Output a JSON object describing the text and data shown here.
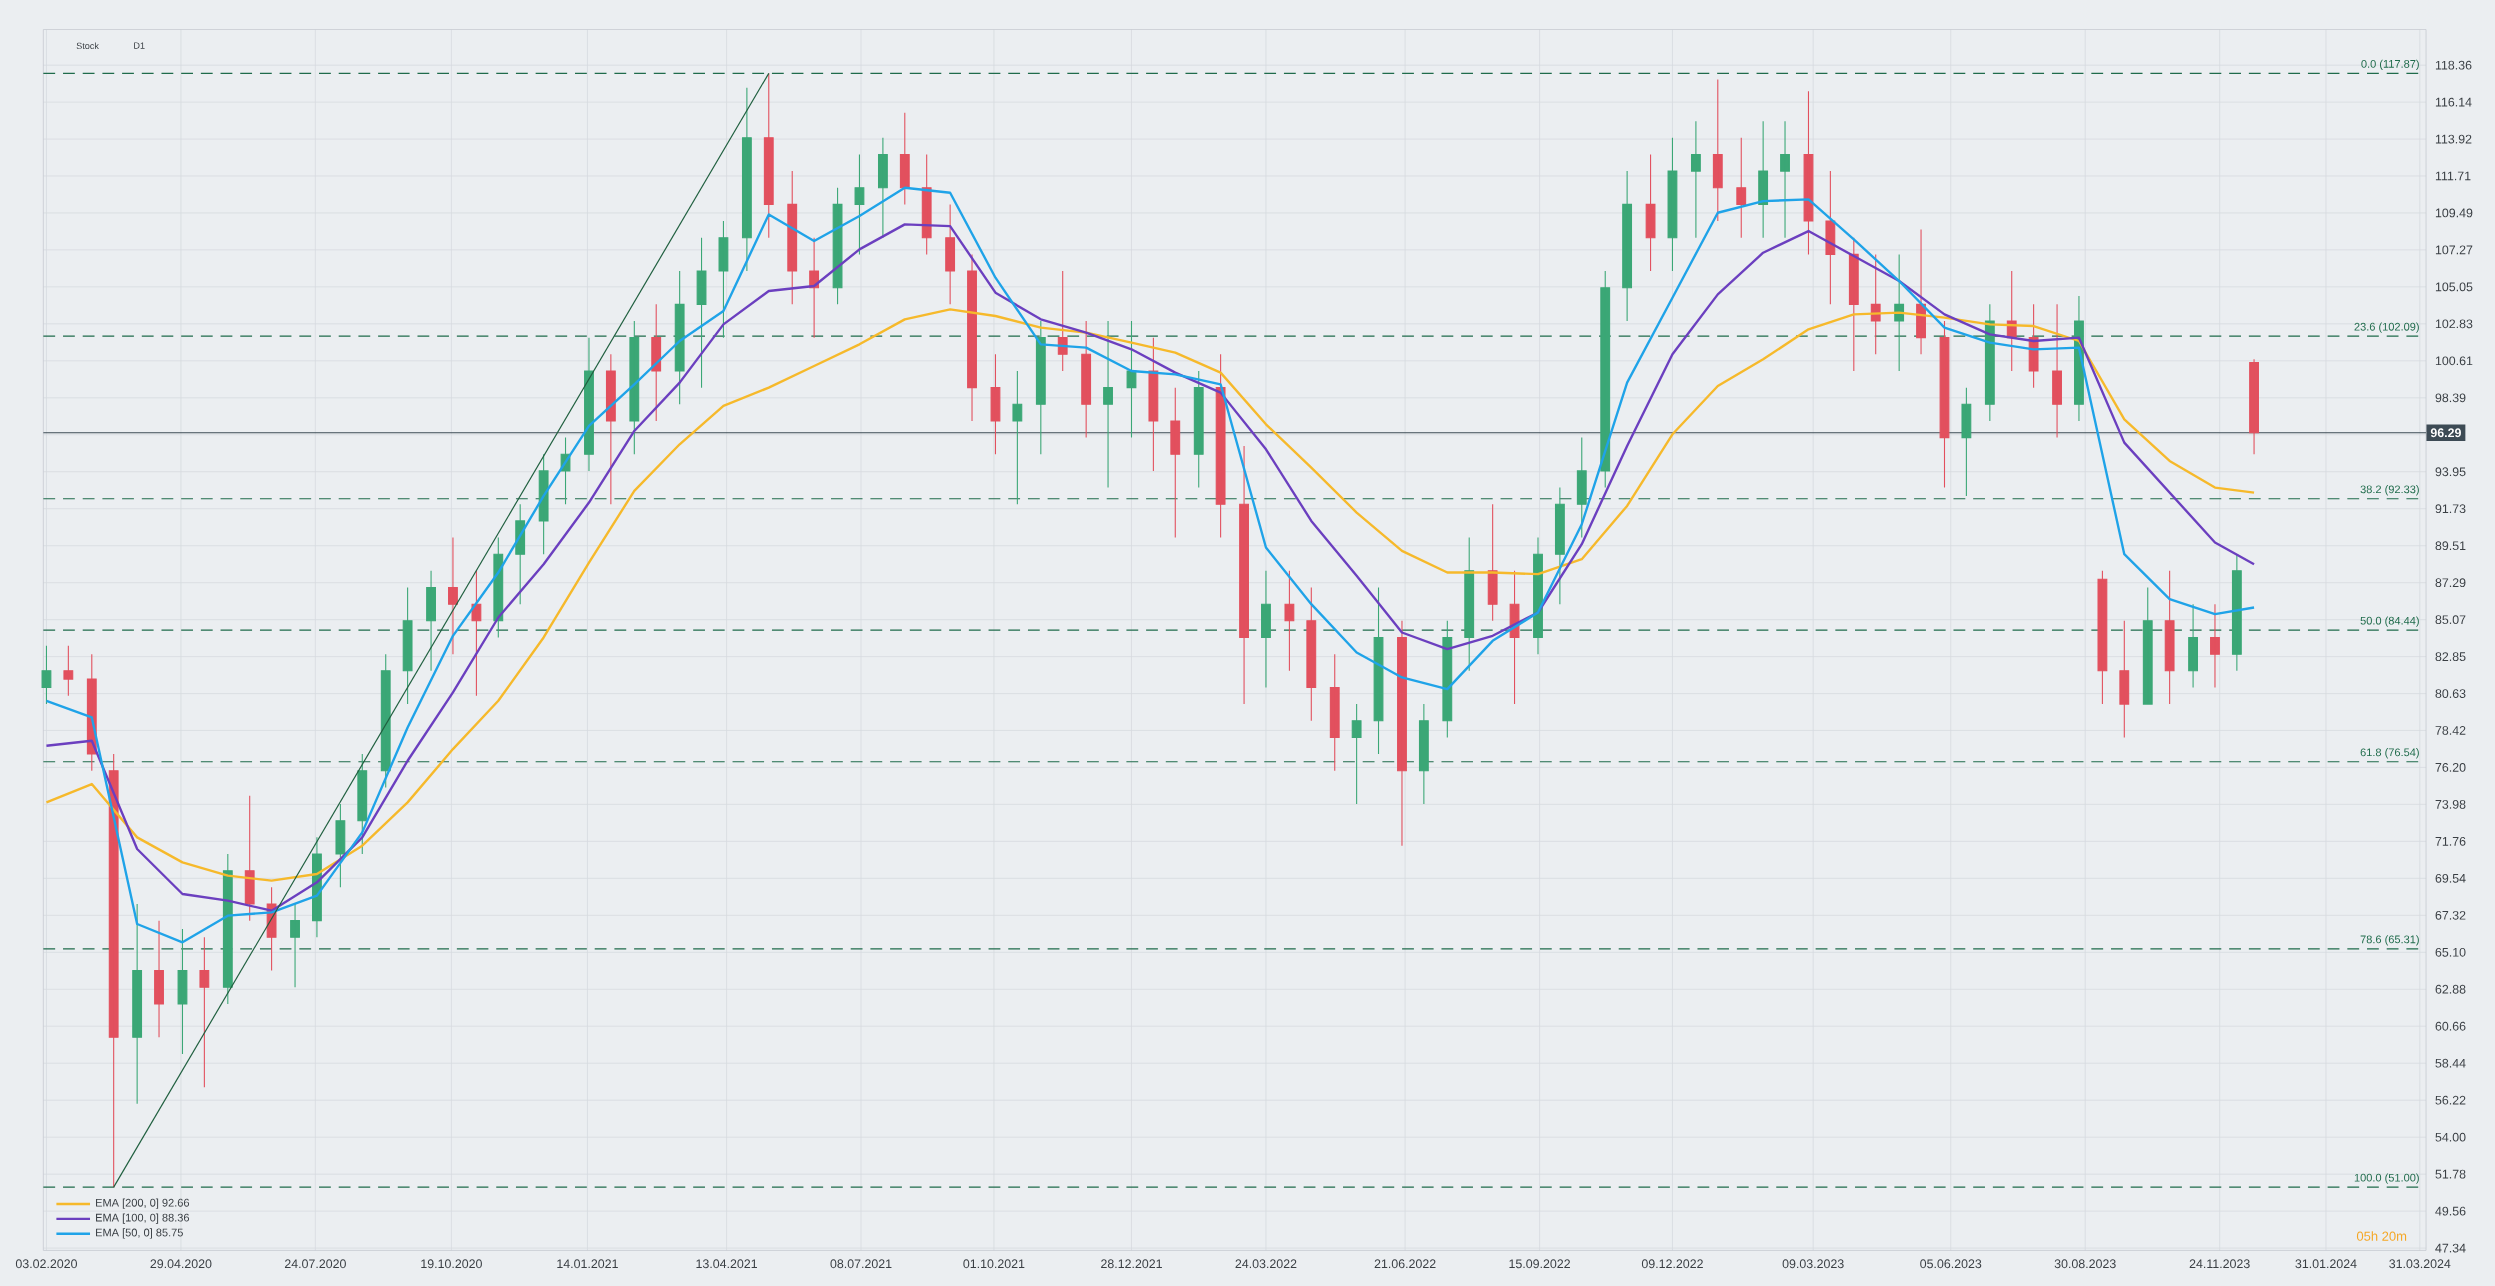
{
  "chart_data": {
    "type": "candlestick",
    "x": [
      "2020-02-03",
      "2020-02-17",
      "2020-03-03",
      "2020-03-17",
      "2020-04-01",
      "2020-04-15",
      "2020-04-30",
      "2020-05-14",
      "2020-05-29",
      "2020-06-12",
      "2020-06-26",
      "2020-07-11",
      "2020-07-25",
      "2020-08-09",
      "2020-08-23",
      "2020-09-07",
      "2020-09-21",
      "2020-10-06",
      "2020-10-20",
      "2020-11-04",
      "2020-11-18",
      "2020-12-02",
      "2020-12-17",
      "2020-12-31",
      "2021-01-15",
      "2021-01-29",
      "2021-02-13",
      "2021-02-27",
      "2021-03-14",
      "2021-03-28",
      "2021-04-11",
      "2021-04-26",
      "2021-05-10",
      "2021-05-25",
      "2021-06-08",
      "2021-06-23",
      "2021-07-07",
      "2021-07-22",
      "2021-08-05",
      "2021-08-19",
      "2021-09-03",
      "2021-09-17",
      "2021-10-02",
      "2021-10-16",
      "2021-10-31",
      "2021-11-14",
      "2021-11-29",
      "2021-12-13",
      "2021-12-28",
      "2022-01-11",
      "2022-01-25",
      "2022-02-09",
      "2022-02-23",
      "2022-03-10",
      "2022-03-24",
      "2022-04-08",
      "2022-04-22",
      "2022-05-07",
      "2022-05-21",
      "2022-06-04",
      "2022-06-19",
      "2022-07-03",
      "2022-07-18",
      "2022-08-01",
      "2022-08-16",
      "2022-08-30",
      "2022-09-14",
      "2022-09-28",
      "2022-10-12",
      "2022-10-27",
      "2022-11-10",
      "2022-11-25",
      "2022-12-09",
      "2022-12-24",
      "2023-01-07",
      "2023-01-22",
      "2023-02-05",
      "2023-02-19",
      "2023-03-06",
      "2023-03-20",
      "2023-04-04",
      "2023-04-18",
      "2023-05-03",
      "2023-05-17",
      "2023-06-01",
      "2023-06-15",
      "2023-06-30",
      "2023-07-14",
      "2023-07-28",
      "2023-08-12",
      "2023-08-26",
      "2023-09-10",
      "2023-09-24",
      "2023-10-09",
      "2023-10-23",
      "2023-11-07",
      "2023-11-21",
      "2023-12-05",
      "2023-12-16"
    ],
    "ohlc": [
      [
        81,
        83.5,
        80,
        82
      ],
      [
        82,
        83.5,
        80.5,
        81.5
      ],
      [
        81.5,
        83,
        76,
        77
      ],
      [
        76,
        77,
        51,
        60
      ],
      [
        60,
        68,
        56,
        64
      ],
      [
        64,
        67,
        60,
        62
      ],
      [
        62,
        66.5,
        59,
        64
      ],
      [
        64,
        66,
        57,
        63
      ],
      [
        63,
        71,
        62,
        70
      ],
      [
        70,
        74.5,
        67,
        68
      ],
      [
        68,
        69,
        64,
        66
      ],
      [
        66,
        68,
        63,
        67
      ],
      [
        67,
        72,
        66,
        71
      ],
      [
        71,
        74,
        69,
        73
      ],
      [
        73,
        77,
        71,
        76
      ],
      [
        76,
        83,
        75,
        82
      ],
      [
        82,
        87,
        80,
        85
      ],
      [
        85,
        88,
        82,
        87
      ],
      [
        87,
        90,
        83,
        86
      ],
      [
        86,
        88,
        80.5,
        85
      ],
      [
        85,
        90,
        84,
        89
      ],
      [
        89,
        92,
        86,
        91
      ],
      [
        91,
        95,
        89,
        94
      ],
      [
        94,
        96,
        92,
        95
      ],
      [
        95,
        102,
        94,
        100
      ],
      [
        100,
        101,
        92,
        97
      ],
      [
        97,
        103,
        95,
        102
      ],
      [
        102,
        104,
        97,
        100
      ],
      [
        100,
        106,
        98,
        104
      ],
      [
        104,
        108,
        99,
        106
      ],
      [
        106,
        109,
        102,
        108
      ],
      [
        108,
        117,
        106,
        114
      ],
      [
        114,
        117.87,
        108,
        110
      ],
      [
        110,
        112,
        104,
        106
      ],
      [
        106,
        108,
        102,
        105
      ],
      [
        105,
        111,
        104,
        110
      ],
      [
        110,
        113,
        107,
        111
      ],
      [
        111,
        114,
        108,
        113
      ],
      [
        113,
        115.5,
        110,
        111
      ],
      [
        111,
        113,
        107,
        108
      ],
      [
        108,
        110,
        104,
        106
      ],
      [
        106,
        107,
        97,
        99
      ],
      [
        99,
        101,
        95,
        97
      ],
      [
        97,
        100,
        92,
        98
      ],
      [
        98,
        103,
        95,
        102
      ],
      [
        102,
        106,
        100,
        101
      ],
      [
        101,
        103,
        96,
        98
      ],
      [
        98,
        103,
        93,
        99
      ],
      [
        99,
        103,
        96,
        100
      ],
      [
        100,
        102,
        94,
        97
      ],
      [
        97,
        99,
        90,
        95
      ],
      [
        95,
        100,
        93,
        99
      ],
      [
        99,
        101,
        90,
        92
      ],
      [
        92,
        95.5,
        80,
        84
      ],
      [
        84,
        88,
        81,
        86
      ],
      [
        86,
        88,
        82,
        85
      ],
      [
        85,
        87,
        79,
        81
      ],
      [
        81,
        83,
        76,
        78
      ],
      [
        78,
        80,
        74,
        79
      ],
      [
        79,
        87,
        77,
        84
      ],
      [
        84,
        85,
        71.5,
        76
      ],
      [
        76,
        80,
        74,
        79
      ],
      [
        79,
        85,
        78,
        84
      ],
      [
        84,
        90,
        82,
        88
      ],
      [
        88,
        92,
        85,
        86
      ],
      [
        86,
        88,
        80,
        84
      ],
      [
        84,
        90,
        83,
        89
      ],
      [
        89,
        93,
        86,
        92
      ],
      [
        92,
        96,
        90,
        94
      ],
      [
        94,
        106,
        93,
        105
      ],
      [
        105,
        112,
        103,
        110
      ],
      [
        110,
        113,
        106,
        108
      ],
      [
        108,
        114,
        106,
        112
      ],
      [
        112,
        115,
        108,
        113
      ],
      [
        113,
        117.5,
        109,
        111
      ],
      [
        111,
        114,
        108,
        110
      ],
      [
        110,
        115,
        108,
        112
      ],
      [
        112,
        115,
        108,
        113
      ],
      [
        113,
        116.8,
        107,
        109
      ],
      [
        109,
        112,
        104,
        107
      ],
      [
        107,
        108,
        100,
        104
      ],
      [
        104,
        107,
        101,
        103
      ],
      [
        103,
        107,
        100,
        104
      ],
      [
        104,
        108.5,
        101,
        102
      ],
      [
        102,
        103,
        93,
        96
      ],
      [
        96,
        99,
        92.5,
        98
      ],
      [
        98,
        104,
        97,
        103
      ],
      [
        103,
        106,
        100,
        102
      ],
      [
        102,
        104,
        99,
        100
      ],
      [
        100,
        104,
        96,
        98
      ],
      [
        98,
        104.5,
        97,
        103
      ],
      [
        87.5,
        88,
        80,
        82
      ],
      [
        82,
        85,
        78,
        80
      ],
      [
        80,
        87,
        80,
        85
      ],
      [
        85,
        88,
        80,
        82
      ],
      [
        82,
        86,
        81,
        84
      ],
      [
        84,
        86,
        81,
        83
      ],
      [
        83,
        89,
        82,
        88
      ],
      [
        100.5,
        100.7,
        95,
        96.29
      ]
    ],
    "colors": [
      "#3ba776",
      "#e2505e",
      "#e2505e",
      "#e2505e",
      "#3ba776",
      "#e2505e",
      "#3ba776",
      "#e2505e",
      "#3ba776",
      "#e2505e",
      "#e2505e",
      "#3ba776",
      "#3ba776",
      "#3ba776",
      "#3ba776",
      "#3ba776",
      "#3ba776",
      "#3ba776",
      "#e2505e",
      "#e2505e",
      "#3ba776",
      "#3ba776",
      "#3ba776",
      "#3ba776",
      "#3ba776",
      "#e2505e",
      "#3ba776",
      "#e2505e",
      "#3ba776",
      "#3ba776",
      "#3ba776",
      "#3ba776",
      "#e2505e",
      "#e2505e",
      "#e2505e",
      "#3ba776",
      "#3ba776",
      "#3ba776",
      "#e2505e",
      "#e2505e",
      "#e2505e",
      "#e2505e",
      "#e2505e",
      "#3ba776",
      "#3ba776",
      "#e2505e",
      "#e2505e",
      "#3ba776",
      "#3ba776",
      "#e2505e",
      "#e2505e",
      "#3ba776",
      "#e2505e",
      "#e2505e",
      "#3ba776",
      "#e2505e",
      "#e2505e",
      "#e2505e",
      "#3ba776",
      "#3ba776",
      "#e2505e",
      "#3ba776",
      "#3ba776",
      "#3ba776",
      "#e2505e",
      "#e2505e",
      "#3ba776",
      "#3ba776",
      "#3ba776",
      "#3ba776",
      "#3ba776",
      "#e2505e",
      "#3ba776",
      "#3ba776",
      "#e2505e",
      "#e2505e",
      "#3ba776",
      "#3ba776",
      "#e2505e",
      "#e2505e",
      "#e2505e",
      "#e2505e",
      "#3ba776",
      "#e2505e",
      "#e2505e",
      "#3ba776",
      "#3ba776",
      "#e2505e",
      "#e2505e",
      "#e2505e",
      "#3ba776",
      "#e2505e",
      "#e2505e",
      "#3ba776",
      "#e2505e",
      "#3ba776",
      "#e2505e",
      "#3ba776",
      "#e2505e"
    ],
    "series": [
      {
        "type": "line",
        "name": "EMA [200, 0] 92.66",
        "color": "#f6b92b",
        "x": [
          "2020-02-03",
          "2020-03-03",
          "2020-04-01",
          "2020-04-30",
          "2020-05-29",
          "2020-06-26",
          "2020-07-25",
          "2020-08-23",
          "2020-09-21",
          "2020-10-20",
          "2020-11-18",
          "2020-12-17",
          "2021-01-15",
          "2021-02-13",
          "2021-03-14",
          "2021-04-11",
          "2021-05-10",
          "2021-06-08",
          "2021-07-07",
          "2021-08-05",
          "2021-09-03",
          "2021-10-02",
          "2021-10-31",
          "2021-11-29",
          "2021-12-28",
          "2022-01-25",
          "2022-02-23",
          "2022-03-24",
          "2022-04-22",
          "2022-05-21",
          "2022-06-19",
          "2022-07-18",
          "2022-08-16",
          "2022-09-14",
          "2022-10-12",
          "2022-11-10",
          "2022-12-09",
          "2023-01-07",
          "2023-02-05",
          "2023-03-06",
          "2023-04-04",
          "2023-05-03",
          "2023-06-01",
          "2023-06-30",
          "2023-07-28",
          "2023-08-26",
          "2023-09-24",
          "2023-10-23",
          "2023-11-21",
          "2023-12-16"
        ],
        "values": [
          74.1,
          75.2,
          72.0,
          70.5,
          69.7,
          69.4,
          69.8,
          71.5,
          74.1,
          77.3,
          80.2,
          84.0,
          88.5,
          92.8,
          95.6,
          97.9,
          99.0,
          100.3,
          101.6,
          103.1,
          103.7,
          103.3,
          102.6,
          102.3,
          101.7,
          101.1,
          99.9,
          96.8,
          94.2,
          91.5,
          89.2,
          87.9,
          87.9,
          87.8,
          88.7,
          91.9,
          96.2,
          99.1,
          100.7,
          102.5,
          103.4,
          103.5,
          103.2,
          102.8,
          102.7,
          101.8,
          97.1,
          94.6,
          93.0,
          92.7
        ]
      },
      {
        "type": "line",
        "name": "EMA [100, 0] 88.36",
        "color": "#6b3fbf",
        "x": [
          "2020-02-03",
          "2020-03-03",
          "2020-04-01",
          "2020-04-30",
          "2020-05-29",
          "2020-06-26",
          "2020-07-25",
          "2020-08-23",
          "2020-09-21",
          "2020-10-20",
          "2020-11-18",
          "2020-12-17",
          "2021-01-15",
          "2021-02-13",
          "2021-03-14",
          "2021-04-11",
          "2021-05-10",
          "2021-06-08",
          "2021-07-07",
          "2021-08-05",
          "2021-09-03",
          "2021-10-02",
          "2021-10-31",
          "2021-11-29",
          "2021-12-28",
          "2022-01-25",
          "2022-02-23",
          "2022-03-24",
          "2022-04-22",
          "2022-05-21",
          "2022-06-19",
          "2022-07-18",
          "2022-08-16",
          "2022-09-14",
          "2022-10-12",
          "2022-11-10",
          "2022-12-09",
          "2023-01-07",
          "2023-02-05",
          "2023-03-06",
          "2023-04-04",
          "2023-05-03",
          "2023-06-01",
          "2023-06-30",
          "2023-07-28",
          "2023-08-26",
          "2023-09-24",
          "2023-10-23",
          "2023-11-21",
          "2023-12-16"
        ],
        "values": [
          77.5,
          77.8,
          71.3,
          68.6,
          68.2,
          67.6,
          69.3,
          72.0,
          76.6,
          80.7,
          85.2,
          88.4,
          92.1,
          96.4,
          99.3,
          102.8,
          104.8,
          105.1,
          107.3,
          108.8,
          108.7,
          104.7,
          103.1,
          102.3,
          101.3,
          99.9,
          98.7,
          95.3,
          91.0,
          87.7,
          84.3,
          83.3,
          84.1,
          85.5,
          89.6,
          95.5,
          101.0,
          104.6,
          107.1,
          108.4,
          106.9,
          105.4,
          103.4,
          102.2,
          101.8,
          102.0,
          95.7,
          92.7,
          89.7,
          88.4
        ]
      },
      {
        "type": "line",
        "name": "EMA [50, 0] 85.75",
        "color": "#1fa3e8",
        "x": [
          "2020-02-03",
          "2020-03-03",
          "2020-04-01",
          "2020-04-30",
          "2020-05-29",
          "2020-06-26",
          "2020-07-25",
          "2020-08-23",
          "2020-09-21",
          "2020-10-20",
          "2020-11-18",
          "2020-12-17",
          "2021-01-15",
          "2021-02-13",
          "2021-03-14",
          "2021-04-11",
          "2021-05-10",
          "2021-06-08",
          "2021-07-07",
          "2021-08-05",
          "2021-09-03",
          "2021-10-02",
          "2021-10-31",
          "2021-11-29",
          "2021-12-28",
          "2022-01-25",
          "2022-02-23",
          "2022-03-24",
          "2022-04-22",
          "2022-05-21",
          "2022-06-19",
          "2022-07-18",
          "2022-08-16",
          "2022-09-14",
          "2022-10-12",
          "2022-11-10",
          "2022-12-09",
          "2023-01-07",
          "2023-02-05",
          "2023-03-06",
          "2023-04-04",
          "2023-05-03",
          "2023-06-01",
          "2023-06-30",
          "2023-07-28",
          "2023-08-26",
          "2023-09-24",
          "2023-10-23",
          "2023-11-21",
          "2023-12-16"
        ],
        "values": [
          80.2,
          79.2,
          66.8,
          65.7,
          67.3,
          67.5,
          68.5,
          72.3,
          78.6,
          84.1,
          87.9,
          92.5,
          96.7,
          99.2,
          101.8,
          103.6,
          109.4,
          107.8,
          109.3,
          111.0,
          110.7,
          105.6,
          101.6,
          101.4,
          100.0,
          99.8,
          99.2,
          89.4,
          86.0,
          83.1,
          81.6,
          80.9,
          83.8,
          85.5,
          90.8,
          99.3,
          104.4,
          109.5,
          110.2,
          110.3,
          107.9,
          105.4,
          102.6,
          101.7,
          101.3,
          101.4,
          89.0,
          86.3,
          85.4,
          85.8
        ]
      },
      {
        "type": "line",
        "color": "#1f5f3f",
        "x": [
          "2020-03-17",
          "2021-05-10"
        ],
        "values": [
          51.0,
          117.87
        ]
      }
    ],
    "ref_lines": [
      {
        "axis": "y",
        "value": 117.87,
        "label": "0.0 (117.87)",
        "color": "#1f6b4b",
        "line_style": "dashed"
      },
      {
        "axis": "y",
        "value": 102.09,
        "label": "23.6 (102.09)",
        "color": "#1f6b4b",
        "line_style": "dashed"
      },
      {
        "axis": "y",
        "value": 92.33,
        "label": "38.2 (92.33)",
        "color": "#1f6b4b",
        "line_style": "dashed"
      },
      {
        "axis": "y",
        "value": 84.44,
        "label": "50.0 (84.44)",
        "color": "#1f6b4b",
        "line_style": "dashed"
      },
      {
        "axis": "y",
        "value": 76.54,
        "label": "61.8 (76.54)",
        "color": "#1f6b4b",
        "line_style": "dashed"
      },
      {
        "axis": "y",
        "value": 65.31,
        "label": "78.6 (65.31)",
        "color": "#1f6b4b",
        "line_style": "dashed"
      },
      {
        "axis": "y",
        "value": 51.0,
        "label": "100.0 (51.00)",
        "color": "#1f6b4b",
        "line_style": "dashed"
      },
      {
        "axis": "y",
        "value": 96.29,
        "label": "96.29",
        "color": "#3d4b55",
        "line_style": "solid"
      }
    ],
    "annotations": [
      "Stock",
      "D1",
      "05h 20m"
    ],
    "xlim": [
      "2020-02-01",
      "2024-04-04"
    ],
    "ylim": [
      47.2,
      120.5
    ],
    "xticks": [
      {
        "value": "2020-02-03",
        "label": "03.02.2020"
      },
      {
        "value": "2020-04-29",
        "label": "29.04.2020"
      },
      {
        "value": "2020-07-24",
        "label": "24.07.2020"
      },
      {
        "value": "2020-10-19",
        "label": "19.10.2020"
      },
      {
        "value": "2021-01-14",
        "label": "14.01.2021"
      },
      {
        "value": "2021-04-13",
        "label": "13.04.2021"
      },
      {
        "value": "2021-07-08",
        "label": "08.07.2021"
      },
      {
        "value": "2021-10-01",
        "label": "01.10.2021"
      },
      {
        "value": "2021-12-28",
        "label": "28.12.2021"
      },
      {
        "value": "2022-03-24",
        "label": "24.03.2022"
      },
      {
        "value": "2022-06-21",
        "label": "21.06.2022"
      },
      {
        "value": "2022-09-15",
        "label": "15.09.2022"
      },
      {
        "value": "2022-12-09",
        "label": "09.12.2022"
      },
      {
        "value": "2023-03-09",
        "label": "09.03.2023"
      },
      {
        "value": "2023-06-05",
        "label": "05.06.2023"
      },
      {
        "value": "2023-08-30",
        "label": "30.08.2023"
      },
      {
        "value": "2023-11-24",
        "label": "24.11.2023"
      },
      {
        "value": "2024-01-31",
        "label": "31.01.2024"
      },
      {
        "value": "2024-03-31",
        "label": "31.03.2024"
      }
    ],
    "yticks": [
      47.34,
      49.56,
      51.78,
      {
        "value": 54,
        "label": "54.00"
      },
      56.22,
      58.44,
      60.66,
      62.88,
      {
        "value": 65.1,
        "label": "65.10"
      },
      67.32,
      69.54,
      71.76,
      73.98,
      {
        "value": 76.2,
        "label": "76.20"
      },
      78.42,
      80.63,
      82.85,
      85.07,
      87.29,
      89.51,
      91.73,
      93.95,
      {
        "value": 96.17,
        "label": null
      },
      98.39,
      100.61,
      102.83,
      105.05,
      107.27,
      109.49,
      111.71,
      113.92,
      116.14,
      118.36
    ],
    "grid": true,
    "legend": "bottom left"
  }
}
